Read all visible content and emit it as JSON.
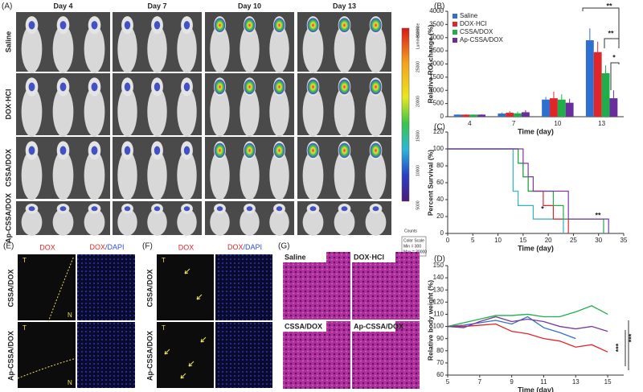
{
  "figure": {
    "panel_a": {
      "label": "(A)",
      "days": [
        "Day 4",
        "Day 7",
        "Day 10",
        "Day 13"
      ],
      "groups": [
        "Saline",
        "DOX·HCl",
        "CSSA/DOX",
        "Ap-CSSA/DOX"
      ],
      "colorbar": {
        "title": "Luminescence",
        "ticks": [
          "30000",
          "25000",
          "20000",
          "15000",
          "10000",
          "5000"
        ],
        "units": "Counts",
        "scale_title": "Color Scale",
        "min": "Min = 300",
        "max": "Max = 30000"
      }
    },
    "panel_e": {
      "label": "(E)",
      "channel": "DOX",
      "merge_parts": [
        "DOX",
        "/DAPI"
      ],
      "groups": [
        "CSSA/DOX",
        "Ap-CSSA/DOX"
      ],
      "regions": [
        "T",
        "N",
        "T",
        "N"
      ]
    },
    "panel_f": {
      "label": "(F)",
      "channel": "DOX",
      "merge_parts": [
        "DOX",
        "/DAPI"
      ],
      "groups": [
        "CSSA/DOX",
        "Ap-CSSA/DOX"
      ],
      "regions": [
        "T",
        "T"
      ]
    },
    "panel_g": {
      "label": "(G)",
      "groups": [
        "Saline",
        "DOX·HCl",
        "CSSA/DOX",
        "Ap-CSSA/DOX"
      ]
    }
  },
  "chart_data": [
    {
      "type": "bar",
      "label": "(B)",
      "ylabel": "Relative ROI change (%)",
      "xlabel": "Time (day)",
      "categories": [
        "4",
        "7",
        "10",
        "13"
      ],
      "series": [
        {
          "name": "Saline",
          "color": "#2f6fd0",
          "values": [
            80,
            120,
            650,
            2900
          ],
          "errors": [
            10,
            40,
            100,
            450
          ]
        },
        {
          "name": "DOX·HCl",
          "color": "#e0262a",
          "values": [
            80,
            150,
            700,
            2450
          ],
          "errors": [
            10,
            60,
            250,
            400
          ]
        },
        {
          "name": "CSSA/DOX",
          "color": "#1fae4a",
          "values": [
            80,
            130,
            650,
            1650
          ],
          "errors": [
            10,
            60,
            200,
            300
          ]
        },
        {
          "name": "Ap-CSSA/DOX",
          "color": "#6a2e9c",
          "values": [
            80,
            170,
            530,
            700
          ],
          "errors": [
            10,
            80,
            150,
            300
          ]
        }
      ],
      "ylim": [
        0,
        4000
      ],
      "yticks": [
        0,
        500,
        1000,
        1500,
        2000,
        2500,
        3000,
        3500,
        4000
      ],
      "legend": "upper left",
      "annotations": [
        "**",
        "**",
        "*"
      ]
    },
    {
      "type": "step",
      "label": "(C)",
      "ylabel": "Percent Survival (%)",
      "xlabel": "Time (day)",
      "series": [
        {
          "name": "Saline",
          "color": "#2fb3c0",
          "x": [
            0,
            13,
            14,
            17,
            23
          ],
          "values": [
            100,
            50,
            33,
            17,
            0
          ]
        },
        {
          "name": "DOX·HCl",
          "color": "#e0262a",
          "x": [
            0,
            14,
            15,
            16,
            19,
            21,
            24
          ],
          "values": [
            100,
            83,
            67,
            50,
            33,
            17,
            0
          ]
        },
        {
          "name": "CSSA/DOX",
          "color": "#1fae4a",
          "x": [
            0,
            14,
            15,
            16,
            21,
            23,
            31
          ],
          "values": [
            100,
            83,
            67,
            50,
            33,
            17,
            0
          ]
        },
        {
          "name": "Ap-CSSA/DOX",
          "color": "#7a3a9e",
          "x": [
            0,
            15,
            16,
            17,
            19,
            24,
            32
          ],
          "values": [
            100,
            83,
            67,
            50,
            50,
            17,
            0
          ]
        }
      ],
      "xlim": [
        0,
        35
      ],
      "xticks": [
        0,
        5,
        10,
        15,
        20,
        25,
        30,
        35
      ],
      "ylim": [
        0,
        120
      ],
      "yticks": [
        0,
        20,
        40,
        60,
        80,
        100,
        120
      ],
      "annotations": [
        "*",
        "**"
      ]
    },
    {
      "type": "line",
      "label": "(D)",
      "ylabel": "Relative body weight (%)",
      "xlabel": "Time (day)",
      "x": [
        5,
        6,
        7,
        8,
        9,
        10,
        11,
        12,
        13,
        14,
        15
      ],
      "series": [
        {
          "name": "Saline",
          "color": "#2f6fd0",
          "values": [
            100,
            101,
            103,
            105,
            102,
            108,
            99,
            95,
            90,
            null,
            null
          ]
        },
        {
          "name": "DOX·HCl",
          "color": "#e0262a",
          "values": [
            100,
            100,
            101,
            102,
            96,
            94,
            90,
            88,
            83,
            85,
            79
          ]
        },
        {
          "name": "CSSA/DOX",
          "color": "#1fae4a",
          "values": [
            100,
            103,
            106,
            109,
            109,
            110,
            108,
            108,
            112,
            117,
            110
          ]
        },
        {
          "name": "Ap-CSSA/DOX",
          "color": "#7a3a9e",
          "values": [
            100,
            99,
            104,
            108,
            104,
            106,
            104,
            100,
            98,
            100,
            96
          ]
        }
      ],
      "xlim": [
        5,
        16
      ],
      "xticks": [
        5,
        7,
        9,
        11,
        13,
        15
      ],
      "ylim": [
        60,
        150
      ],
      "yticks": [
        60,
        70,
        80,
        90,
        100,
        110,
        120,
        130,
        140,
        150
      ],
      "annotations": [
        "***",
        "***"
      ]
    }
  ]
}
